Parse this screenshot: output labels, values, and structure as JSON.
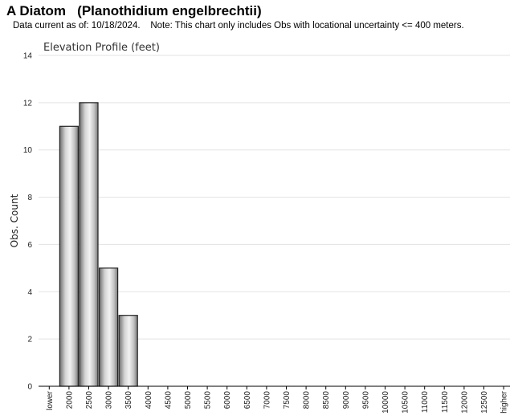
{
  "header": {
    "title": "A Diatom   (Planothidium engelbrechtii)",
    "subtitle": "Data current as of: 10/18/2024.    Note: This chart only includes Obs with locational uncertainty <= 400 meters."
  },
  "chart_data": {
    "type": "bar",
    "title": "Elevation Profile (feet)",
    "xlabel": "",
    "ylabel": "Obs. Count",
    "categories": [
      "lower",
      "2000",
      "2500",
      "3000",
      "3500",
      "4000",
      "4500",
      "5000",
      "5500",
      "6000",
      "6500",
      "7000",
      "7500",
      "8000",
      "8500",
      "9000",
      "9500",
      "10000",
      "10500",
      "11000",
      "11500",
      "12000",
      "12500",
      "higher"
    ],
    "values": [
      0,
      11,
      12,
      5,
      3,
      0,
      0,
      0,
      0,
      0,
      0,
      0,
      0,
      0,
      0,
      0,
      0,
      0,
      0,
      0,
      0,
      0,
      0,
      0
    ],
    "ylim": [
      0,
      14
    ],
    "yticks": [
      0,
      2,
      4,
      6,
      8,
      10,
      12,
      14
    ],
    "grid": true,
    "legend": "none"
  }
}
